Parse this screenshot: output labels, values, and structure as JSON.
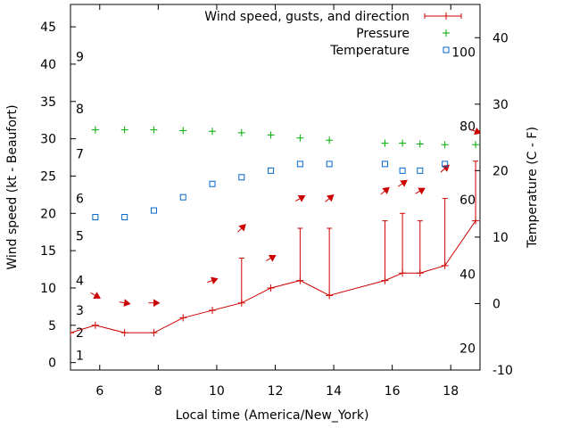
{
  "chart_data": {
    "type": "line",
    "xlabel": "Local time (America/New_York)",
    "ylabel": "Wind speed (kt - Beaufort)",
    "y2label": "Temperature (C - F)",
    "xlim": [
      5,
      19
    ],
    "ylim": [
      -1,
      48
    ],
    "y2lim": [
      -10,
      45
    ],
    "x_ticks": [
      6,
      8,
      10,
      12,
      14,
      16,
      18
    ],
    "y_ticks": [
      0,
      5,
      10,
      15,
      20,
      25,
      30,
      35,
      40,
      45
    ],
    "y2_ticks": [
      -10,
      0,
      10,
      20,
      30,
      40
    ],
    "beaufort_labels": [
      {
        "label": "1",
        "y": 1
      },
      {
        "label": "2",
        "y": 4
      },
      {
        "label": "3",
        "y": 7
      },
      {
        "label": "4",
        "y": 11
      },
      {
        "label": "5",
        "y": 17
      },
      {
        "label": "6",
        "y": 22
      },
      {
        "label": "7",
        "y": 28
      },
      {
        "label": "8",
        "y": 34
      },
      {
        "label": "9",
        "y": 41
      }
    ],
    "fahrenheit_labels": [
      {
        "label": "20",
        "c": -6.7
      },
      {
        "label": "40",
        "c": 4.4
      },
      {
        "label": "60",
        "c": 15.6
      },
      {
        "label": "80",
        "c": 26.7
      },
      {
        "label": "100",
        "c": 37.8
      }
    ],
    "legend": [
      {
        "label": "Wind speed, gusts, and direction",
        "color": "#cc0000",
        "marker": "line-plus"
      },
      {
        "label": "Pressure",
        "color": "#00aa00",
        "marker": "plus"
      },
      {
        "label": "Temperature",
        "color": "#0066cc",
        "marker": "square"
      }
    ],
    "legend_position": "top-right",
    "series": [
      {
        "name": "Wind speed, gusts, and direction",
        "color": "#cc0000",
        "x": [
          5.0,
          5.85,
          6.85,
          7.85,
          8.85,
          9.85,
          10.85,
          11.85,
          12.85,
          13.85,
          15.75,
          16.35,
          16.95,
          17.8,
          18.85
        ],
        "y": [
          4,
          5,
          4,
          4,
          6,
          7,
          8,
          10,
          11,
          9,
          11,
          12,
          12,
          13,
          19
        ],
        "gusts": [
          null,
          null,
          null,
          null,
          null,
          null,
          14,
          null,
          18,
          18,
          19,
          20,
          19,
          22,
          27
        ],
        "direction_arrows": [
          {
            "x": 5.85,
            "y": 9.0,
            "angle_deg": 30
          },
          {
            "x": 6.85,
            "y": 8.0,
            "angle_deg": 10
          },
          {
            "x": 7.85,
            "y": 8.0,
            "angle_deg": 0
          },
          {
            "x": 9.85,
            "y": 11.0,
            "angle_deg": -20
          },
          {
            "x": 10.85,
            "y": 18.0,
            "angle_deg": -45
          },
          {
            "x": 11.85,
            "y": 14.0,
            "angle_deg": -30
          },
          {
            "x": 12.85,
            "y": 22.0,
            "angle_deg": -30
          },
          {
            "x": 13.85,
            "y": 22.0,
            "angle_deg": -40
          },
          {
            "x": 15.75,
            "y": 23.0,
            "angle_deg": -40
          },
          {
            "x": 16.35,
            "y": 24.0,
            "angle_deg": -35
          },
          {
            "x": 16.95,
            "y": 23.0,
            "angle_deg": -30
          },
          {
            "x": 17.8,
            "y": 26.0,
            "angle_deg": -40
          },
          {
            "x": 18.85,
            "y": 31.0,
            "angle_deg": 20
          }
        ]
      },
      {
        "name": "Pressure",
        "color": "#00aa00",
        "x": [
          5.85,
          6.85,
          7.85,
          8.85,
          9.85,
          10.85,
          11.85,
          12.85,
          13.85,
          15.75,
          16.35,
          16.95,
          17.8,
          18.85
        ],
        "y": [
          31.2,
          31.2,
          31.2,
          31.1,
          31.0,
          30.8,
          30.5,
          30.1,
          29.8,
          29.4,
          29.4,
          29.3,
          29.2,
          29.2
        ]
      },
      {
        "name": "Temperature",
        "color": "#0066cc",
        "axis": "y2",
        "x": [
          5.85,
          6.85,
          7.85,
          8.85,
          9.85,
          10.85,
          11.85,
          12.85,
          13.85,
          15.75,
          16.35,
          16.95,
          17.8
        ],
        "y": [
          13,
          13,
          14,
          16,
          18,
          19,
          20,
          21,
          21,
          21,
          20,
          20,
          21
        ]
      }
    ]
  }
}
